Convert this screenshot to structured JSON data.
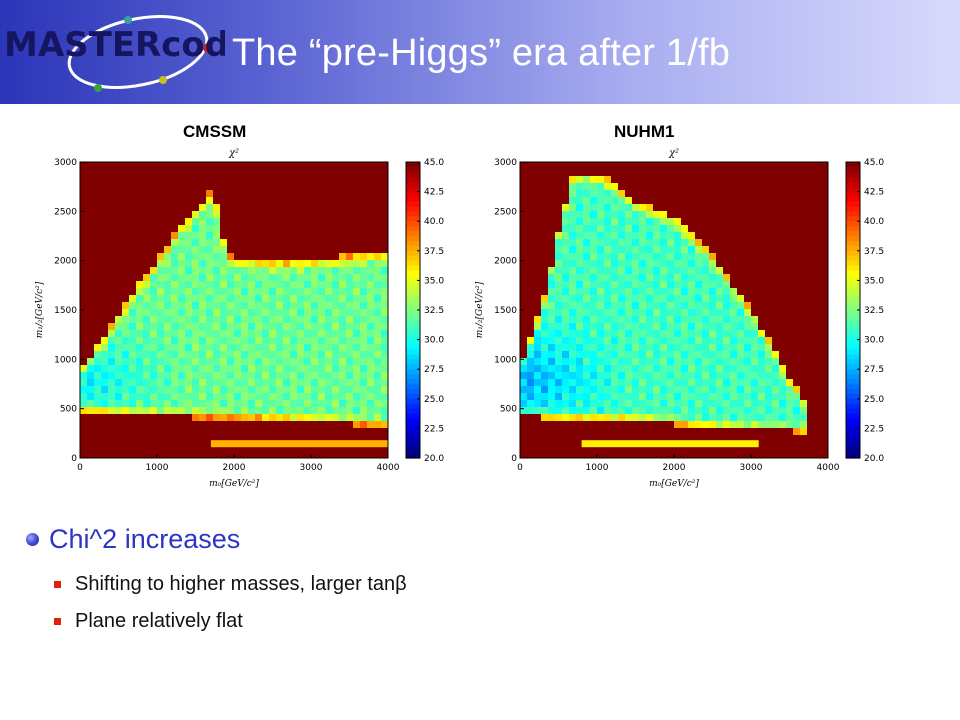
{
  "header": {
    "logo_text": "MASTERcode",
    "title": "The “pre-Higgs” era after 1/fb"
  },
  "plots": {
    "left_label": "CMSSM",
    "right_label": "NUHM1"
  },
  "bullets": {
    "main": "Chi^2 increases",
    "subs": [
      "Shifting to higher masses, larger tanβ",
      "Plane relatively flat"
    ]
  },
  "chart_data": [
    {
      "type": "heatmap",
      "title": "χ²",
      "xlabel": "m₀[GeV/c²]",
      "ylabel": "m₁/₂[GeV/c²]",
      "xlim": [
        0,
        4000
      ],
      "ylim": [
        0,
        3000
      ],
      "x_ticks": [
        0,
        1000,
        2000,
        3000,
        4000
      ],
      "y_ticks": [
        0,
        500,
        1000,
        1500,
        2000,
        2500,
        3000
      ],
      "colorbar": {
        "range": [
          20.0,
          45.0
        ],
        "ticks": [
          "45.0",
          "42.5",
          "40.0",
          "37.5",
          "35.0",
          "32.5",
          "30.0",
          "27.5",
          "25.0",
          "22.5",
          "20.0"
        ]
      },
      "background_value": 45.0,
      "region": {
        "lower_boundary": [
          [
            0,
            480
          ],
          [
            500,
            440
          ],
          [
            1000,
            420
          ],
          [
            1500,
            410
          ],
          [
            2000,
            400
          ],
          [
            2500,
            380
          ],
          [
            3000,
            360
          ],
          [
            3500,
            340
          ],
          [
            4000,
            320
          ]
        ],
        "upper_boundary": [
          [
            0,
            900
          ],
          [
            300,
            1200
          ],
          [
            700,
            1700
          ],
          [
            1000,
            2000
          ],
          [
            1300,
            2350
          ],
          [
            1700,
            2700
          ],
          [
            1800,
            2500
          ],
          [
            1900,
            2050
          ],
          [
            2500,
            2000
          ],
          [
            3000,
            2020
          ],
          [
            3500,
            2050
          ],
          [
            3900,
            2100
          ],
          [
            4000,
            2050
          ]
        ],
        "typical_value": 32.0,
        "minimum_value": 29.0,
        "strip": {
          "x_range": [
            1700,
            4000
          ],
          "y": 150,
          "value": 37.5
        }
      }
    },
    {
      "type": "heatmap",
      "title": "χ²",
      "xlabel": "m₀[GeV/c²]",
      "ylabel": "m₁/₂[GeV/c²]",
      "xlim": [
        0,
        4000
      ],
      "ylim": [
        0,
        3000
      ],
      "x_ticks": [
        0,
        1000,
        2000,
        3000,
        4000
      ],
      "y_ticks": [
        0,
        500,
        1000,
        1500,
        2000,
        2500,
        3000
      ],
      "colorbar": {
        "range": [
          20.0,
          45.0
        ],
        "ticks": [
          "45.0",
          "42.5",
          "40.0",
          "37.5",
          "35.0",
          "32.5",
          "30.0",
          "27.5",
          "25.0",
          "22.5",
          "20.0"
        ]
      },
      "background_value": 45.0,
      "region": {
        "lower_boundary": [
          [
            0,
            420
          ],
          [
            500,
            400
          ],
          [
            1000,
            390
          ],
          [
            1500,
            370
          ],
          [
            2000,
            340
          ],
          [
            2500,
            300
          ],
          [
            3000,
            280
          ],
          [
            3500,
            270
          ],
          [
            3700,
            260
          ]
        ],
        "upper_boundary": [
          [
            0,
            950
          ],
          [
            300,
            1550
          ],
          [
            500,
            2300
          ],
          [
            700,
            2900
          ],
          [
            1100,
            2850
          ],
          [
            1500,
            2600
          ],
          [
            2000,
            2450
          ],
          [
            2500,
            2050
          ],
          [
            3000,
            1500
          ],
          [
            3300,
            1100
          ],
          [
            3500,
            800
          ],
          [
            3700,
            600
          ]
        ],
        "typical_value": 31.0,
        "minimum_value": 27.0,
        "strip": {
          "x_range": [
            800,
            3100
          ],
          "y": 150,
          "value": 36.0
        }
      }
    }
  ]
}
